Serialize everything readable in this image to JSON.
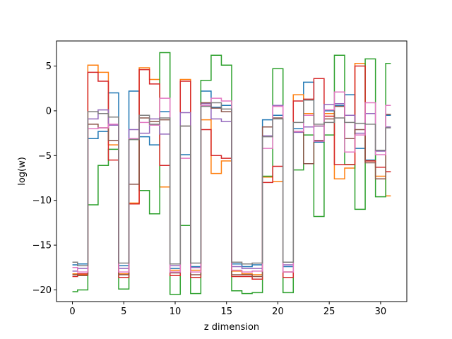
{
  "chart_data": {
    "type": "line",
    "drawstyle": "steps-mid",
    "title": "",
    "xlabel": "z dimension",
    "ylabel": "log(w)",
    "xlim": [
      -1.55,
      32.55
    ],
    "ylim": [
      -21.3,
      7.8
    ],
    "xticks": [
      0,
      5,
      10,
      15,
      20,
      25,
      30
    ],
    "yticks": [
      -20,
      -15,
      -10,
      -5,
      0,
      5
    ],
    "grid": false,
    "legend": "none",
    "x": [
      0,
      1,
      2,
      3,
      4,
      5,
      6,
      7,
      8,
      9,
      10,
      11,
      12,
      13,
      14,
      15,
      16,
      17,
      18,
      19,
      20,
      21,
      22,
      23,
      24,
      25,
      26,
      27,
      28,
      29,
      30,
      31
    ],
    "series": [
      {
        "color": "#1f77b4",
        "values": [
          -17.2,
          -17.1,
          -3.1,
          -2.3,
          2.0,
          -17.3,
          2.2,
          -2.9,
          -3.8,
          -0.1,
          -17.6,
          -4.9,
          -17.4,
          2.2,
          0.4,
          0.6,
          -17.1,
          -17.4,
          -17.2,
          -1.0,
          -0.5,
          -17.4,
          -2.0,
          3.2,
          -3.5,
          0.0,
          0.6,
          1.8,
          -4.2,
          -5.5,
          -4.4,
          -0.5
        ]
      },
      {
        "color": "#ff7f0e",
        "values": [
          -18.2,
          -18.3,
          5.1,
          4.3,
          -3.8,
          -18.2,
          -10.3,
          4.8,
          3.5,
          -8.5,
          -17.8,
          3.5,
          -17.8,
          -1.0,
          -7.0,
          -5.6,
          -17.9,
          -18.2,
          -18.3,
          -7.4,
          -7.9,
          -18.0,
          1.8,
          -0.3,
          -1.7,
          -0.3,
          -7.6,
          -6.4,
          5.3,
          -5.6,
          -7.3,
          -9.5
        ]
      },
      {
        "color": "#2ca02c",
        "values": [
          -20.2,
          -20.0,
          -10.5,
          -6.1,
          -4.3,
          -19.9,
          -3.2,
          -8.9,
          -11.5,
          6.5,
          -20.5,
          -12.8,
          -20.4,
          3.4,
          6.2,
          5.1,
          -20.1,
          -20.4,
          -20.3,
          -7.3,
          4.7,
          -20.3,
          -6.6,
          -2.7,
          -11.8,
          -2.7,
          6.2,
          -6.0,
          -11.0,
          5.8,
          -9.6,
          5.3
        ]
      },
      {
        "color": "#d62728",
        "values": [
          -18.5,
          -18.2,
          4.3,
          3.3,
          -5.5,
          -18.6,
          -10.4,
          4.6,
          3.0,
          -6.1,
          -18.4,
          3.3,
          -18.6,
          -2.1,
          -5.0,
          -5.3,
          -18.5,
          -18.5,
          -18.8,
          -8.0,
          -6.2,
          -18.6,
          1.1,
          1.3,
          3.6,
          -0.6,
          -6.0,
          -6.0,
          5.0,
          -5.6,
          -6.3,
          -6.8
        ]
      },
      {
        "color": "#9467bd",
        "values": [
          -17.9,
          -17.6,
          -0.9,
          0.1,
          -1.6,
          -17.6,
          -2.1,
          -2.5,
          -0.9,
          -2.6,
          -17.3,
          -0.2,
          -17.5,
          0.8,
          -0.9,
          -1.2,
          -17.4,
          -17.6,
          -17.6,
          -2.8,
          0.6,
          -17.2,
          -2.4,
          -1.8,
          -1.7,
          0.7,
          0.8,
          -0.5,
          -2.5,
          -0.3,
          -4.5,
          -1.8
        ]
      },
      {
        "color": "#8c564b",
        "values": [
          -18.3,
          -18.4,
          -1.5,
          -1.9,
          -3.3,
          -18.3,
          -8.2,
          -0.8,
          -1.2,
          -1.0,
          -18.1,
          -1.7,
          -18.3,
          0.9,
          0.3,
          -0.1,
          -18.3,
          -18.3,
          -18.5,
          -1.8,
          -0.8,
          -18.0,
          -2.3,
          -5.9,
          -3.3,
          -0.9,
          0.5,
          -3.1,
          -2.1,
          -5.8,
          -7.6,
          -0.4
        ]
      },
      {
        "color": "#e377c2",
        "values": [
          -17.5,
          -18.0,
          -2.0,
          -1.9,
          -1.5,
          -18.0,
          -3.1,
          -1.3,
          -1.6,
          1.4,
          -18.0,
          -5.3,
          -18.0,
          0.6,
          1.4,
          1.1,
          -17.8,
          -18.0,
          -17.9,
          -4.2,
          0.5,
          -18.0,
          -2.3,
          -0.5,
          -3.4,
          0.1,
          2.1,
          -4.6,
          -2.7,
          0.9,
          -4.9,
          0.6
        ]
      },
      {
        "color": "#7f7f7f",
        "values": [
          -16.9,
          -17.3,
          -0.1,
          -0.3,
          -0.7,
          -17.0,
          -3.2,
          -0.5,
          -1.5,
          -0.8,
          -17.1,
          -1.7,
          -17.0,
          0.5,
          0.9,
          0.2,
          -16.9,
          -17.1,
          -17.0,
          -2.9,
          -0.9,
          -16.9,
          -1.3,
          1.2,
          -1.5,
          -1.3,
          -0.8,
          -1.3,
          -1.4,
          -1.5,
          -4.4,
          -1.9
        ]
      }
    ]
  }
}
